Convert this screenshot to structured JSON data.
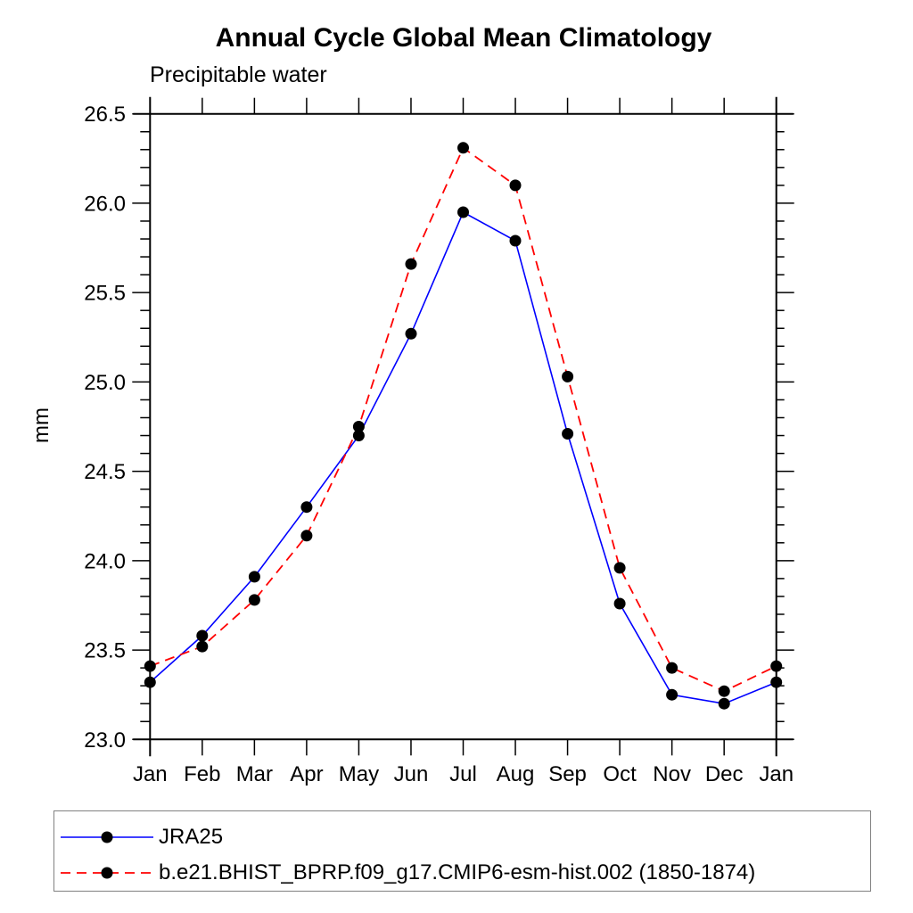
{
  "header": {
    "title": "Annual Cycle Global Mean Climatology",
    "subtitle": "Precipitable water"
  },
  "chart_data": {
    "type": "line",
    "title": "Annual Cycle Global Mean Climatology",
    "subtitle": "Precipitable water",
    "xlabel": "",
    "ylabel": "mm",
    "ylim": [
      23.0,
      26.5
    ],
    "y_major_step": 0.5,
    "y_minor_step": 0.1,
    "y_tick_labels": [
      "23.0",
      "23.5",
      "24.0",
      "24.5",
      "25.0",
      "25.5",
      "26.0",
      "26.5"
    ],
    "categories": [
      "Jan",
      "Feb",
      "Mar",
      "Apr",
      "May",
      "Jun",
      "Jul",
      "Aug",
      "Sep",
      "Oct",
      "Nov",
      "Dec",
      "Jan"
    ],
    "grid": false,
    "legend_position": "bottom",
    "series": [
      {
        "name": "JRA25",
        "color": "#0000ff",
        "line_style": "solid",
        "marker_color": "#000000",
        "values": [
          23.32,
          23.58,
          23.91,
          24.3,
          24.7,
          25.27,
          25.95,
          25.79,
          24.71,
          23.76,
          23.25,
          23.2,
          23.32
        ]
      },
      {
        "name": "b.e21.BHIST_BPRP.f09_g17.CMIP6-esm-hist.002 (1850-1874)",
        "color": "#ff0000",
        "line_style": "dashed",
        "marker_color": "#000000",
        "values": [
          23.41,
          23.52,
          23.78,
          24.14,
          24.75,
          25.66,
          26.31,
          26.1,
          25.03,
          23.96,
          23.4,
          23.27,
          23.41
        ]
      }
    ]
  },
  "colors": {
    "axis": "#000000",
    "text": "#000000",
    "legend_border": "#808080",
    "background": "#ffffff",
    "series_blue": "#0000ff",
    "series_red": "#ff0000",
    "marker": "#000000"
  }
}
